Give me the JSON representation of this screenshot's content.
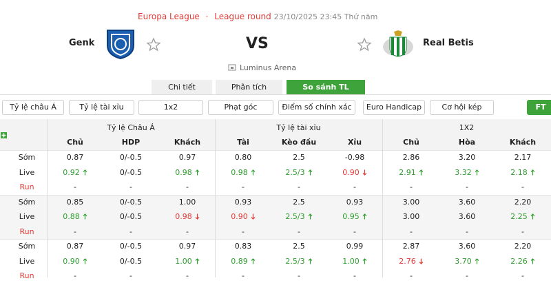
{
  "header": {
    "competition": "Europa League",
    "separator": "·",
    "round": "League round",
    "datetime": "23/10/2025 23:45 Thứ năm"
  },
  "match": {
    "home": "Genk",
    "vs": "VS",
    "away": "Real Betis",
    "venue": "Luminus Arena"
  },
  "tabs": {
    "items": [
      "Chi tiết",
      "Phân tích",
      "So sánh TL"
    ],
    "active": 2
  },
  "filters": {
    "items": [
      "Tỷ lệ châu Á",
      "Tỷ lệ tài xỉu",
      "1x2",
      "Phạt góc",
      "Điểm số chính xác",
      "Euro Handicap",
      "Cơ hội kép"
    ],
    "period": "FT"
  },
  "table": {
    "groups": [
      "Tỷ lệ Châu Á",
      "Tỷ lệ tài xỉu",
      "1X2"
    ],
    "columns": [
      "Chủ",
      "HDP",
      "Khách",
      "Tài",
      "Kèo đầu",
      "Xỉu",
      "Chủ",
      "Hòa",
      "Khách"
    ],
    "row_groups": [
      {
        "rows": [
          {
            "label": "Sớm",
            "cells": [
              {
                "text": "0.87"
              },
              {
                "text": "0/-0.5"
              },
              {
                "text": "0.97"
              },
              {
                "text": "0.80"
              },
              {
                "text": "2.5"
              },
              {
                "text": "-0.98"
              },
              {
                "text": "2.86"
              },
              {
                "text": "3.20"
              },
              {
                "text": "2.17"
              }
            ]
          },
          {
            "label": "Live",
            "cells": [
              {
                "text": "0.92",
                "trend": "up"
              },
              {
                "text": "0/-0.5"
              },
              {
                "text": "0.98",
                "trend": "up"
              },
              {
                "text": "0.98",
                "trend": "up"
              },
              {
                "text": "2.5/3",
                "trend": "up"
              },
              {
                "text": "0.90",
                "trend": "down"
              },
              {
                "text": "2.91",
                "trend": "up"
              },
              {
                "text": "3.32",
                "trend": "up"
              },
              {
                "text": "2.18",
                "trend": "up"
              }
            ]
          },
          {
            "label": "Run",
            "cells": [
              {
                "text": "-"
              },
              {
                "text": "-"
              },
              {
                "text": "-"
              },
              {
                "text": "-"
              },
              {
                "text": "-"
              },
              {
                "text": "-"
              },
              {
                "text": "-"
              },
              {
                "text": "-"
              },
              {
                "text": "-"
              }
            ]
          }
        ]
      },
      {
        "rows": [
          {
            "label": "Sớm",
            "cells": [
              {
                "text": "0.85"
              },
              {
                "text": "0/-0.5"
              },
              {
                "text": "1.00"
              },
              {
                "text": "0.93"
              },
              {
                "text": "2.5"
              },
              {
                "text": "0.93"
              },
              {
                "text": "3.00"
              },
              {
                "text": "3.60"
              },
              {
                "text": "2.20"
              }
            ]
          },
          {
            "label": "Live",
            "cells": [
              {
                "text": "0.88",
                "trend": "up"
              },
              {
                "text": "0/-0.5"
              },
              {
                "text": "0.98",
                "trend": "down"
              },
              {
                "text": "0.90",
                "trend": "down"
              },
              {
                "text": "2.5/3",
                "trend": "up"
              },
              {
                "text": "0.95",
                "trend": "up"
              },
              {
                "text": "3.00"
              },
              {
                "text": "3.60"
              },
              {
                "text": "2.25",
                "trend": "up"
              }
            ]
          },
          {
            "label": "Run",
            "cells": [
              {
                "text": "-"
              },
              {
                "text": "-"
              },
              {
                "text": "-"
              },
              {
                "text": "-"
              },
              {
                "text": "-"
              },
              {
                "text": "-"
              },
              {
                "text": "-"
              },
              {
                "text": "-"
              },
              {
                "text": "-"
              }
            ]
          }
        ]
      },
      {
        "rows": [
          {
            "label": "Sớm",
            "cells": [
              {
                "text": "0.87"
              },
              {
                "text": "0/-0.5"
              },
              {
                "text": "0.97"
              },
              {
                "text": "0.83"
              },
              {
                "text": "2.5"
              },
              {
                "text": "0.99"
              },
              {
                "text": "2.87"
              },
              {
                "text": "3.60"
              },
              {
                "text": "2.20"
              }
            ]
          },
          {
            "label": "Live",
            "cells": [
              {
                "text": "0.90",
                "trend": "up"
              },
              {
                "text": "0/-0.5"
              },
              {
                "text": "1.00",
                "trend": "up"
              },
              {
                "text": "0.89",
                "trend": "up"
              },
              {
                "text": "2.5/3",
                "trend": "up"
              },
              {
                "text": "1.00",
                "trend": "up"
              },
              {
                "text": "2.76",
                "trend": "down"
              },
              {
                "text": "3.70",
                "trend": "up"
              },
              {
                "text": "2.26",
                "trend": "up"
              }
            ]
          },
          {
            "label": "Run",
            "cells": [
              {
                "text": "-"
              },
              {
                "text": "-"
              },
              {
                "text": "-"
              },
              {
                "text": "-"
              },
              {
                "text": "-"
              },
              {
                "text": "-"
              },
              {
                "text": "-"
              },
              {
                "text": "-"
              },
              {
                "text": "-"
              }
            ]
          }
        ]
      }
    ]
  }
}
